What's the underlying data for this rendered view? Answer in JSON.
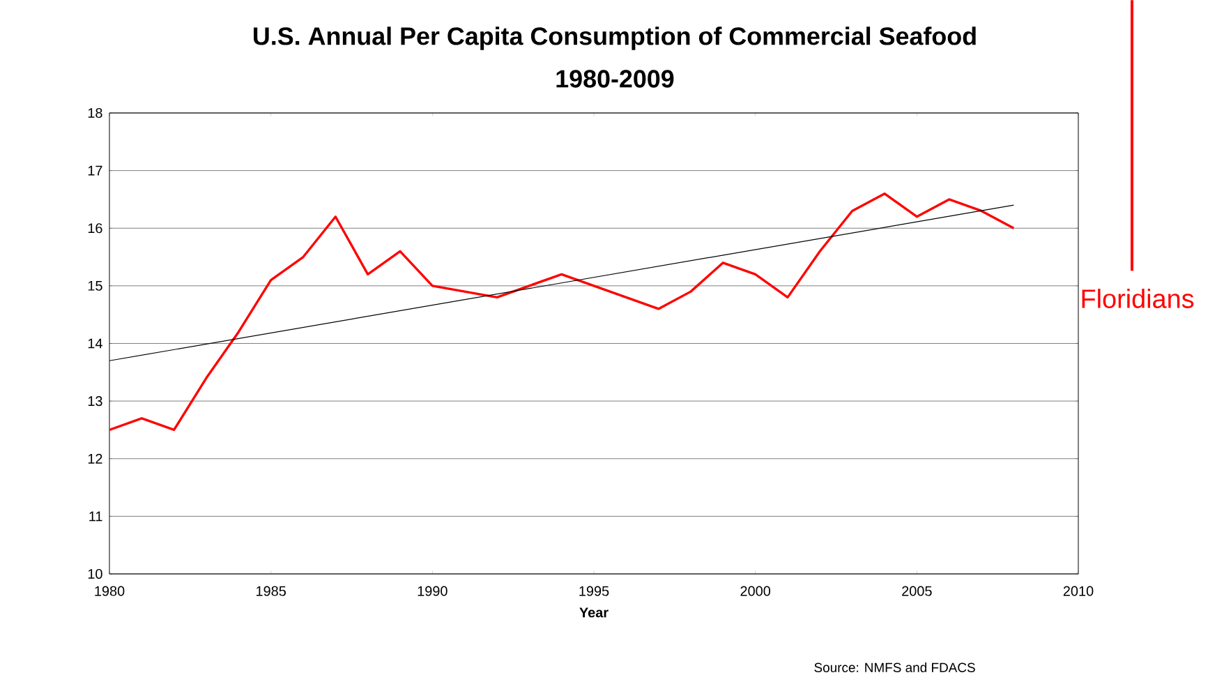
{
  "chart_data": {
    "type": "line",
    "title": "U.S. Annual Per Capita Consumption of Commercial Seafood",
    "subtitle": "1980-2009",
    "xlabel": "Year",
    "x": [
      1980,
      1981,
      1982,
      1983,
      1984,
      1985,
      1986,
      1987,
      1988,
      1989,
      1990,
      1991,
      1992,
      1993,
      1994,
      1995,
      1996,
      1997,
      1998,
      1999,
      2000,
      2001,
      2002,
      2003,
      2004,
      2005,
      2006,
      2007,
      2008
    ],
    "series": [
      {
        "color": "#ff0000",
        "values": [
          12.5,
          12.7,
          12.5,
          13.4,
          14.2,
          15.1,
          15.5,
          16.2,
          15.2,
          15.6,
          15.0,
          14.9,
          14.8,
          15.0,
          15.2,
          15.0,
          14.8,
          14.6,
          14.9,
          15.4,
          15.2,
          14.8,
          15.6,
          16.3,
          16.6,
          16.2,
          16.5,
          16.3,
          16.0
        ]
      },
      {
        "color": "#000000",
        "x": [
          1980,
          2008
        ],
        "values": [
          13.7,
          16.4
        ]
      }
    ],
    "xlim": [
      1980,
      2010
    ],
    "xticks": [
      1980,
      1985,
      1990,
      1995,
      2000,
      2005,
      2010
    ],
    "ylim": [
      10,
      18
    ],
    "yticks": [
      10,
      11,
      12,
      13,
      14,
      15,
      16,
      17,
      18
    ],
    "grid": "y",
    "annotations": [
      "Source: NMFS and FDACS",
      "Floridians"
    ]
  }
}
